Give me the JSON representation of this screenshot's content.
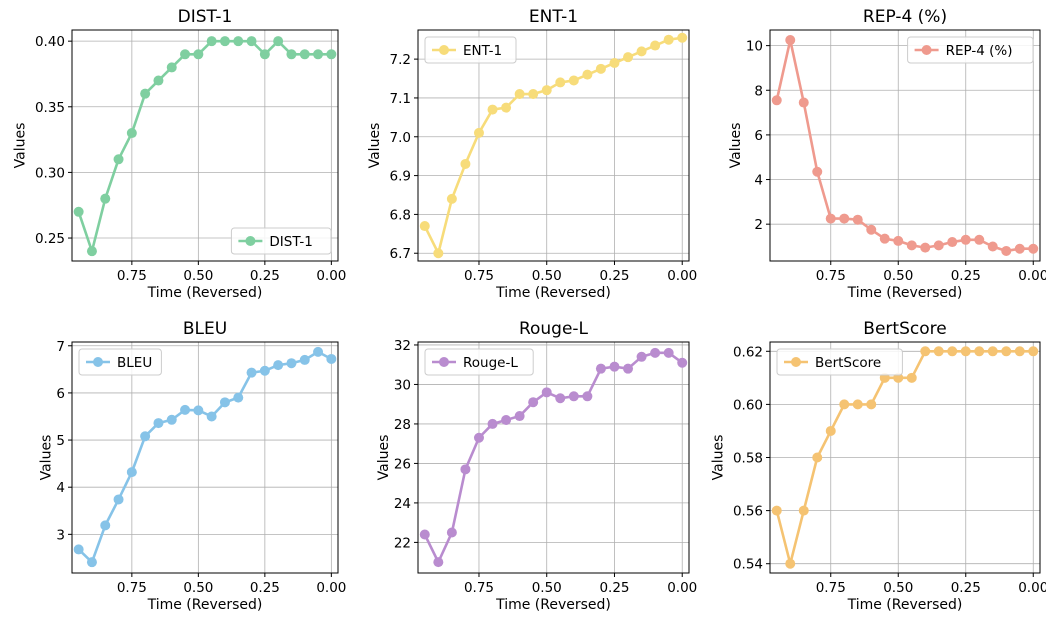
{
  "chart_data": [
    {
      "type": "line",
      "title": "DIST-1",
      "xlabel": "Time (Reversed)",
      "ylabel": "Values",
      "x": [
        0.95,
        0.9,
        0.85,
        0.8,
        0.75,
        0.7,
        0.65,
        0.6,
        0.55,
        0.5,
        0.45,
        0.4,
        0.35,
        0.3,
        0.25,
        0.2,
        0.15,
        0.1,
        0.05,
        0.0
      ],
      "series": [
        {
          "name": "DIST-1",
          "color": "#7fcfa0",
          "values": [
            0.27,
            0.24,
            0.28,
            0.31,
            0.33,
            0.36,
            0.37,
            0.38,
            0.39,
            0.39,
            0.4,
            0.4,
            0.4,
            0.4,
            0.39,
            0.4,
            0.39,
            0.39,
            0.39,
            0.39
          ]
        }
      ],
      "xlim": [
        0.975,
        -0.025
      ],
      "ylim": [
        0.2325,
        0.4085
      ],
      "xticks": [
        0.75,
        0.5,
        0.25,
        0.0
      ],
      "xtick_labels": [
        "0.75",
        "0.50",
        "0.25",
        "0.00"
      ],
      "yticks": [
        0.25,
        0.3,
        0.35,
        0.4
      ],
      "ytick_labels": [
        "0.25",
        "0.30",
        "0.35",
        "0.40"
      ],
      "grid": true,
      "legend_position": "lower-right"
    },
    {
      "type": "line",
      "title": "ENT-1",
      "xlabel": "Time (Reversed)",
      "ylabel": "Values",
      "x": [
        0.95,
        0.9,
        0.85,
        0.8,
        0.75,
        0.7,
        0.65,
        0.6,
        0.55,
        0.5,
        0.45,
        0.4,
        0.35,
        0.3,
        0.25,
        0.2,
        0.15,
        0.1,
        0.05,
        0.0
      ],
      "series": [
        {
          "name": "ENT-1",
          "color": "#f7dc7a",
          "values": [
            6.77,
            6.7,
            6.84,
            6.93,
            7.01,
            7.07,
            7.075,
            7.11,
            7.11,
            7.12,
            7.14,
            7.145,
            7.16,
            7.175,
            7.19,
            7.205,
            7.22,
            7.235,
            7.25,
            7.255
          ]
        }
      ],
      "xlim": [
        0.975,
        -0.025
      ],
      "ylim": [
        6.68,
        7.275
      ],
      "xticks": [
        0.75,
        0.5,
        0.25,
        0.0
      ],
      "xtick_labels": [
        "0.75",
        "0.50",
        "0.25",
        "0.00"
      ],
      "yticks": [
        6.7,
        6.8,
        6.9,
        7.0,
        7.1,
        7.2
      ],
      "ytick_labels": [
        "6.7",
        "6.8",
        "6.9",
        "7.0",
        "7.1",
        "7.2"
      ],
      "grid": true,
      "legend_position": "upper-left"
    },
    {
      "type": "line",
      "title": "REP-4 (%)",
      "xlabel": "Time (Reversed)",
      "ylabel": "Values",
      "x": [
        0.95,
        0.9,
        0.85,
        0.8,
        0.75,
        0.7,
        0.65,
        0.6,
        0.55,
        0.5,
        0.45,
        0.4,
        0.35,
        0.3,
        0.25,
        0.2,
        0.15,
        0.1,
        0.05,
        0.0
      ],
      "series": [
        {
          "name": "REP-4 (%)",
          "color": "#ef9a8e",
          "values": [
            7.55,
            10.25,
            7.45,
            4.35,
            2.25,
            2.25,
            2.2,
            1.75,
            1.35,
            1.25,
            1.05,
            0.95,
            1.05,
            1.2,
            1.3,
            1.3,
            1.0,
            0.8,
            0.9,
            0.9
          ]
        }
      ],
      "xlim": [
        0.975,
        -0.025
      ],
      "ylim": [
        0.35,
        10.7
      ],
      "xticks": [
        0.75,
        0.5,
        0.25,
        0.0
      ],
      "xtick_labels": [
        "0.75",
        "0.50",
        "0.25",
        "0.00"
      ],
      "yticks": [
        2,
        4,
        6,
        8,
        10
      ],
      "ytick_labels": [
        "2",
        "4",
        "6",
        "8",
        "10"
      ],
      "grid": true,
      "legend_position": "upper-right"
    },
    {
      "type": "line",
      "title": "BLEU",
      "xlabel": "Time (Reversed)",
      "ylabel": "Values",
      "x": [
        0.95,
        0.9,
        0.85,
        0.8,
        0.75,
        0.7,
        0.65,
        0.6,
        0.55,
        0.5,
        0.45,
        0.4,
        0.35,
        0.3,
        0.25,
        0.2,
        0.15,
        0.1,
        0.05,
        0.0
      ],
      "series": [
        {
          "name": "BLEU",
          "color": "#86c3e8",
          "values": [
            2.68,
            2.41,
            3.19,
            3.74,
            4.32,
            5.08,
            5.36,
            5.43,
            5.64,
            5.63,
            5.5,
            5.8,
            5.9,
            6.43,
            6.47,
            6.59,
            6.63,
            6.7,
            6.87,
            6.72
          ]
        }
      ],
      "xlim": [
        0.975,
        -0.025
      ],
      "ylim": [
        2.18,
        7.08
      ],
      "xticks": [
        0.75,
        0.5,
        0.25,
        0.0
      ],
      "xtick_labels": [
        "0.75",
        "0.50",
        "0.25",
        "0.00"
      ],
      "yticks": [
        3,
        4,
        5,
        6,
        7
      ],
      "ytick_labels": [
        "3",
        "4",
        "5",
        "6",
        "7"
      ],
      "grid": true,
      "legend_position": "upper-left"
    },
    {
      "type": "line",
      "title": "Rouge-L",
      "xlabel": "Time (Reversed)",
      "ylabel": "Values",
      "x": [
        0.95,
        0.9,
        0.85,
        0.8,
        0.75,
        0.7,
        0.65,
        0.6,
        0.55,
        0.5,
        0.45,
        0.4,
        0.35,
        0.3,
        0.25,
        0.2,
        0.15,
        0.1,
        0.05,
        0.0
      ],
      "series": [
        {
          "name": "Rouge-L",
          "color": "#b98ccf",
          "values": [
            22.4,
            21.0,
            22.5,
            25.7,
            27.3,
            28.0,
            28.2,
            28.4,
            29.1,
            29.6,
            29.3,
            29.4,
            29.4,
            30.8,
            30.9,
            30.8,
            31.4,
            31.6,
            31.6,
            31.1
          ]
        }
      ],
      "xlim": [
        0.975,
        -0.025
      ],
      "ylim": [
        20.45,
        32.15
      ],
      "xticks": [
        0.75,
        0.5,
        0.25,
        0.0
      ],
      "xtick_labels": [
        "0.75",
        "0.50",
        "0.25",
        "0.00"
      ],
      "yticks": [
        22,
        24,
        26,
        28,
        30,
        32
      ],
      "ytick_labels": [
        "22",
        "24",
        "26",
        "28",
        "30",
        "32"
      ],
      "grid": true,
      "legend_position": "upper-left"
    },
    {
      "type": "line",
      "title": "BertScore",
      "xlabel": "Time (Reversed)",
      "ylabel": "Values",
      "x": [
        0.95,
        0.9,
        0.85,
        0.8,
        0.75,
        0.7,
        0.65,
        0.6,
        0.55,
        0.5,
        0.45,
        0.4,
        0.35,
        0.3,
        0.25,
        0.2,
        0.15,
        0.1,
        0.05,
        0.0
      ],
      "series": [
        {
          "name": "BertScore",
          "color": "#f5c372",
          "values": [
            0.56,
            0.54,
            0.56,
            0.58,
            0.59,
            0.6,
            0.6,
            0.6,
            0.61,
            0.61,
            0.61,
            0.62,
            0.62,
            0.62,
            0.62,
            0.62,
            0.62,
            0.62,
            0.62,
            0.62
          ]
        }
      ],
      "xlim": [
        0.975,
        -0.025
      ],
      "ylim": [
        0.5365,
        0.6235
      ],
      "xticks": [
        0.75,
        0.5,
        0.25,
        0.0
      ],
      "xtick_labels": [
        "0.75",
        "0.50",
        "0.25",
        "0.00"
      ],
      "yticks": [
        0.54,
        0.56,
        0.58,
        0.6,
        0.62
      ],
      "ytick_labels": [
        "0.54",
        "0.56",
        "0.58",
        "0.60",
        "0.62"
      ],
      "grid": true,
      "legend_position": "upper-left"
    }
  ]
}
